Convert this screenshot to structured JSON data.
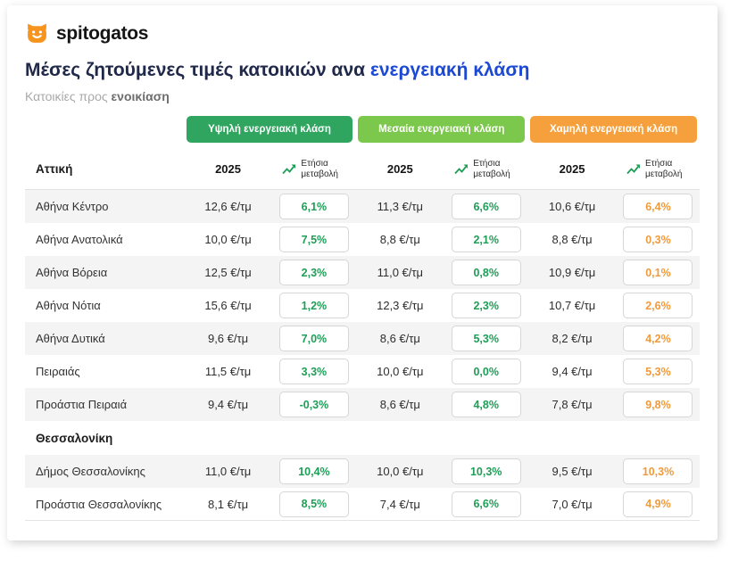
{
  "brand": {
    "logo_text": "spitogatos",
    "logo_color": "#F7941E"
  },
  "header": {
    "title_prefix": "Μέσες ζητούμενες τιμές κατοικιών ανα",
    "title_highlight": "ενεργειακή κλάση",
    "title_highlight_color": "#1C49D3",
    "subtitle_prefix": "Κατοικίες προς",
    "subtitle_emphasis": "ενοικίαση"
  },
  "chart_data": {
    "type": "table",
    "title": "Μέσες ζητούμενες τιμές κατοικιών ανα ενεργειακή κλάση",
    "subtitle": "Κατοικίες προς ενοικίαση",
    "unit": "€/τμ",
    "year_header": "2025",
    "change_header": "Ετήσια μεταβολή",
    "change_icon": "trending-up-icon",
    "groups": [
      {
        "label": "Υψηλή ενεργειακή κλάση",
        "color": "#2FA55F",
        "accent": "#1E9E57"
      },
      {
        "label": "Μεσαία ενεργειακή κλάση",
        "color": "#7CC84C",
        "accent": "#1E9E57"
      },
      {
        "label": "Χαμηλή ενεργειακή κλάση",
        "color": "#F5A03C",
        "accent": "#EF9B3D"
      }
    ],
    "sections": [
      {
        "title": "Αττική",
        "rows": [
          {
            "label": "Αθήνα Κέντρο",
            "values": [
              "12,6 €/τμ",
              "11,3 €/τμ",
              "10,6 €/τμ"
            ],
            "changes": [
              "6,1%",
              "6,6%",
              "6,4%"
            ]
          },
          {
            "label": "Αθήνα Ανατολικά",
            "values": [
              "10,0 €/τμ",
              "8,8 €/τμ",
              "8,8 €/τμ"
            ],
            "changes": [
              "7,5%",
              "2,1%",
              "0,3%"
            ]
          },
          {
            "label": "Αθήνα Βόρεια",
            "values": [
              "12,5 €/τμ",
              "11,0 €/τμ",
              "10,9 €/τμ"
            ],
            "changes": [
              "2,3%",
              "0,8%",
              "0,1%"
            ]
          },
          {
            "label": "Αθήνα Νότια",
            "values": [
              "15,6 €/τμ",
              "12,3 €/τμ",
              "10,7 €/τμ"
            ],
            "changes": [
              "1,2%",
              "2,3%",
              "2,6%"
            ]
          },
          {
            "label": "Αθήνα Δυτικά",
            "values": [
              "9,6 €/τμ",
              "8,6 €/τμ",
              "8,2 €/τμ"
            ],
            "changes": [
              "7,0%",
              "5,3%",
              "4,2%"
            ]
          },
          {
            "label": "Πειραιάς",
            "values": [
              "11,5 €/τμ",
              "10,0 €/τμ",
              "9,4 €/τμ"
            ],
            "changes": [
              "3,3%",
              "0,0%",
              "5,3%"
            ]
          },
          {
            "label": "Προάστια Πειραιά",
            "values": [
              "9,4 €/τμ",
              "8,6 €/τμ",
              "7,8 €/τμ"
            ],
            "changes": [
              "-0,3%",
              "4,8%",
              "9,8%"
            ]
          }
        ]
      },
      {
        "title": "Θεσσαλονίκη",
        "rows": [
          {
            "label": "Δήμος Θεσσαλονίκης",
            "values": [
              "11,0 €/τμ",
              "10,0 €/τμ",
              "9,5 €/τμ"
            ],
            "changes": [
              "10,4%",
              "10,3%",
              "10,3%"
            ]
          },
          {
            "label": "Προάστια Θεσσαλονίκης",
            "values": [
              "8,1 €/τμ",
              "7,4 €/τμ",
              "7,0 €/τμ"
            ],
            "changes": [
              "8,5%",
              "6,6%",
              "4,9%"
            ]
          }
        ]
      }
    ]
  }
}
